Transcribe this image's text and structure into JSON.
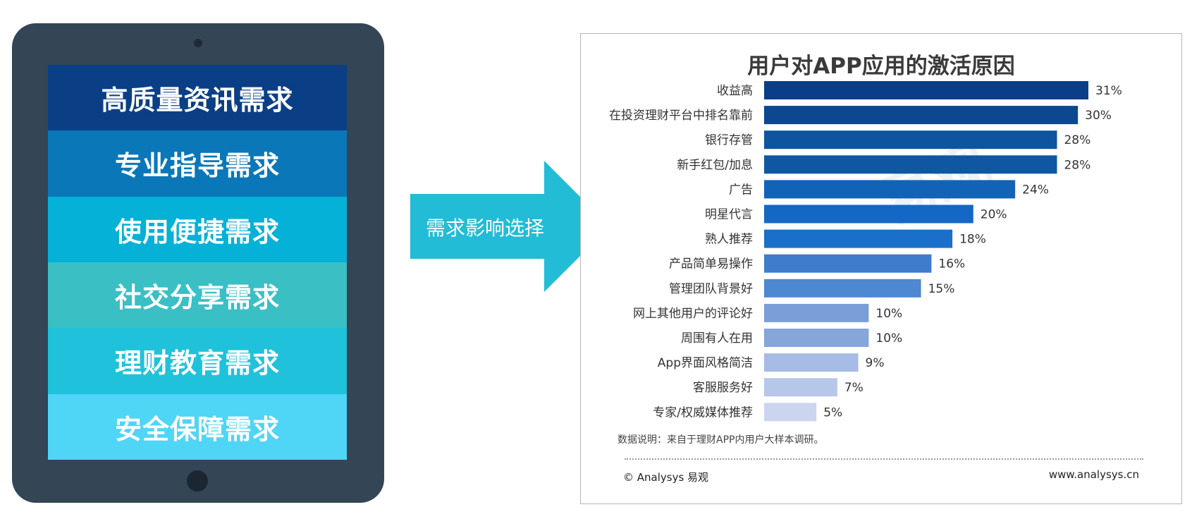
{
  "tablet": {
    "rows": [
      {
        "label": "高质量资讯需求",
        "color": "#0a3f86"
      },
      {
        "label": "专业指导需求",
        "color": "#0a77b9"
      },
      {
        "label": "使用便捷需求",
        "color": "#05b1d6"
      },
      {
        "label": "社交分享需求",
        "color": "#3abfc4"
      },
      {
        "label": "理财教育需求",
        "color": "#1fc2da"
      },
      {
        "label": "安全保障需求",
        "color": "#4fd5f6"
      }
    ]
  },
  "arrow": {
    "label": "需求影响选择",
    "color": "#22bcd6"
  },
  "chart_data": {
    "type": "bar",
    "orientation": "horizontal",
    "title": "用户对APP应用的激活原因",
    "categories": [
      "收益高",
      "在投资理财平台中排名靠前",
      "银行存管",
      "新手红包/加息",
      "广告",
      "明星代言",
      "熟人推荐",
      "产品简单易操作",
      "管理团队背景好",
      "网上其他用户的评论好",
      "周围有人在用",
      "App界面风格简洁",
      "客服服务好",
      "专家/权威媒体推荐"
    ],
    "values": [
      31,
      30,
      28,
      28,
      24,
      20,
      18,
      16,
      15,
      10,
      10,
      9,
      7,
      5
    ],
    "value_labels": [
      "31%",
      "30%",
      "28%",
      "28%",
      "24%",
      "20%",
      "18%",
      "16%",
      "15%",
      "10%",
      "10%",
      "9%",
      "7%",
      "5%"
    ],
    "colors": [
      "#0c3d89",
      "#0c4791",
      "#0e559f",
      "#0f57a3",
      "#1262b8",
      "#1467c4",
      "#1a6fca",
      "#3f7ccc",
      "#4e87d2",
      "#7c9ed8",
      "#86a5db",
      "#a6bbe5",
      "#b7c7ea",
      "#cbd5ef"
    ],
    "xlim": [
      0,
      31
    ],
    "grid": false,
    "legend": "none"
  },
  "note": "数据说明：来自于理财APP内用户大样本调研。",
  "footer": {
    "left": "© Analysys 易观",
    "right": "www.analysys.cn"
  },
  "watermark": "易观"
}
